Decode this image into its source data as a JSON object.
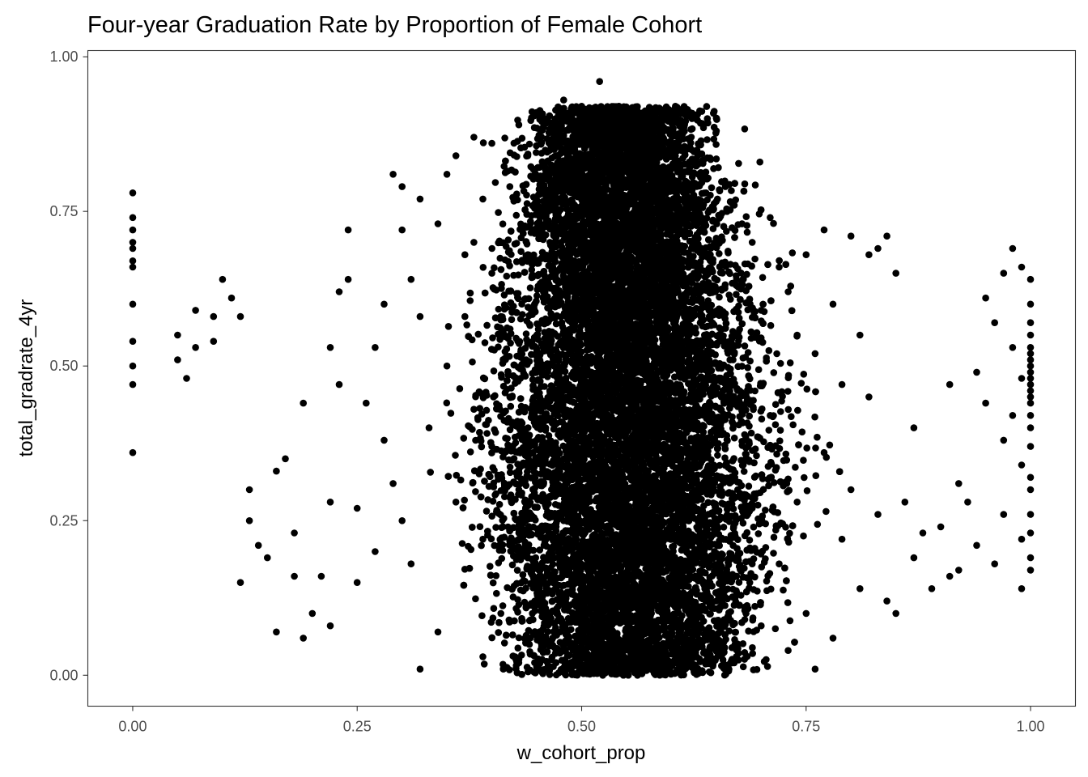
{
  "chart_data": {
    "type": "scatter",
    "title": "Four-year Graduation Rate by Proportion of Female Cohort",
    "xlabel": "w_cohort_prop",
    "ylabel": "total_gradrate_4yr",
    "xlim": [
      -0.05,
      1.05
    ],
    "ylim": [
      -0.05,
      1.01
    ],
    "x_ticks": [
      0,
      0.25,
      0.5,
      0.75,
      1
    ],
    "x_tick_labels": [
      "0.00",
      "0.25",
      "0.50",
      "0.75",
      "1.00"
    ],
    "y_ticks": [
      0,
      0.25,
      0.5,
      0.75,
      1
    ],
    "y_tick_labels": [
      "0.00",
      "0.25",
      "0.50",
      "0.75",
      "1.00"
    ],
    "grid": false,
    "legend": "none",
    "point_color": "#000000",
    "points": [
      [
        0.0,
        0.78
      ],
      [
        0.0,
        0.74
      ],
      [
        0.0,
        0.72
      ],
      [
        0.0,
        0.7
      ],
      [
        0.0,
        0.69
      ],
      [
        0.0,
        0.67
      ],
      [
        0.0,
        0.66
      ],
      [
        0.0,
        0.6
      ],
      [
        0.0,
        0.54
      ],
      [
        0.0,
        0.5
      ],
      [
        0.0,
        0.47
      ],
      [
        0.0,
        0.36
      ],
      [
        0.05,
        0.55
      ],
      [
        0.05,
        0.51
      ],
      [
        0.06,
        0.48
      ],
      [
        0.07,
        0.59
      ],
      [
        0.07,
        0.53
      ],
      [
        0.09,
        0.58
      ],
      [
        0.09,
        0.54
      ],
      [
        0.1,
        0.64
      ],
      [
        0.11,
        0.61
      ],
      [
        0.12,
        0.58
      ],
      [
        0.12,
        0.15
      ],
      [
        0.13,
        0.3
      ],
      [
        0.13,
        0.25
      ],
      [
        0.14,
        0.21
      ],
      [
        0.15,
        0.19
      ],
      [
        0.16,
        0.33
      ],
      [
        0.16,
        0.07
      ],
      [
        0.17,
        0.35
      ],
      [
        0.18,
        0.23
      ],
      [
        0.18,
        0.16
      ],
      [
        0.19,
        0.44
      ],
      [
        0.19,
        0.06
      ],
      [
        0.2,
        0.1
      ],
      [
        0.21,
        0.16
      ],
      [
        0.22,
        0.53
      ],
      [
        0.22,
        0.28
      ],
      [
        0.22,
        0.08
      ],
      [
        0.23,
        0.62
      ],
      [
        0.23,
        0.47
      ],
      [
        0.24,
        0.72
      ],
      [
        0.24,
        0.64
      ],
      [
        0.25,
        0.27
      ],
      [
        0.25,
        0.15
      ],
      [
        0.26,
        0.44
      ],
      [
        0.27,
        0.53
      ],
      [
        0.27,
        0.2
      ],
      [
        0.28,
        0.6
      ],
      [
        0.28,
        0.38
      ],
      [
        0.29,
        0.81
      ],
      [
        0.29,
        0.31
      ],
      [
        0.3,
        0.79
      ],
      [
        0.3,
        0.72
      ],
      [
        0.3,
        0.25
      ],
      [
        0.31,
        0.64
      ],
      [
        0.31,
        0.18
      ],
      [
        0.32,
        0.77
      ],
      [
        0.32,
        0.58
      ],
      [
        0.32,
        0.01
      ],
      [
        0.33,
        0.4
      ],
      [
        0.34,
        0.73
      ],
      [
        0.34,
        0.07
      ],
      [
        0.35,
        0.81
      ],
      [
        0.35,
        0.5
      ],
      [
        0.36,
        0.84
      ],
      [
        0.36,
        0.28
      ],
      [
        0.37,
        0.68
      ],
      [
        0.37,
        0.58
      ],
      [
        0.38,
        0.87
      ],
      [
        0.38,
        0.7
      ],
      [
        0.38,
        0.43
      ],
      [
        0.39,
        0.77
      ],
      [
        0.39,
        0.22
      ],
      [
        0.39,
        0.03
      ],
      [
        0.4,
        0.86
      ],
      [
        0.4,
        0.65
      ],
      [
        0.4,
        0.37
      ],
      [
        0.41,
        0.58
      ],
      [
        0.41,
        0.1
      ],
      [
        0.42,
        0.79
      ],
      [
        0.42,
        0.45
      ],
      [
        0.43,
        0.89
      ],
      [
        0.43,
        0.3
      ],
      [
        0.43,
        0.02
      ],
      [
        0.44,
        0.84
      ],
      [
        0.44,
        0.68
      ],
      [
        0.45,
        0.55
      ],
      [
        0.45,
        0.12
      ],
      [
        0.45,
        0.91
      ],
      [
        0.46,
        0.78
      ],
      [
        0.46,
        0.4
      ],
      [
        0.47,
        0.88
      ],
      [
        0.47,
        0.62
      ],
      [
        0.48,
        0.93
      ],
      [
        0.48,
        0.25
      ],
      [
        0.49,
        0.72
      ],
      [
        0.49,
        0.05
      ],
      [
        0.5,
        0.92
      ],
      [
        0.5,
        0.58
      ],
      [
        0.51,
        0.86
      ],
      [
        0.51,
        0.33
      ],
      [
        0.52,
        0.96
      ],
      [
        0.52,
        0.7
      ],
      [
        0.53,
        0.9
      ],
      [
        0.53,
        0.15
      ],
      [
        0.54,
        0.82
      ],
      [
        0.54,
        0.48
      ],
      [
        0.55,
        0.91
      ],
      [
        0.55,
        0.62
      ],
      [
        0.56,
        0.87
      ],
      [
        0.56,
        0.02
      ],
      [
        0.57,
        0.78
      ],
      [
        0.57,
        0.38
      ],
      [
        0.58,
        0.88
      ],
      [
        0.58,
        0.55
      ],
      [
        0.59,
        0.8
      ],
      [
        0.59,
        0.2
      ],
      [
        0.6,
        0.86
      ],
      [
        0.6,
        0.44
      ],
      [
        0.61,
        0.75
      ],
      [
        0.61,
        0.09
      ],
      [
        0.62,
        0.83
      ],
      [
        0.62,
        0.52
      ],
      [
        0.63,
        0.81
      ],
      [
        0.63,
        0.3
      ],
      [
        0.64,
        0.9
      ],
      [
        0.64,
        0.6
      ],
      [
        0.65,
        0.88
      ],
      [
        0.65,
        0.12
      ],
      [
        0.66,
        0.79
      ],
      [
        0.66,
        0.45
      ],
      [
        0.67,
        0.76
      ],
      [
        0.67,
        0.02
      ],
      [
        0.68,
        0.64
      ],
      [
        0.68,
        0.34
      ],
      [
        0.69,
        0.7
      ],
      [
        0.7,
        0.59
      ],
      [
        0.7,
        0.08
      ],
      [
        0.71,
        0.74
      ],
      [
        0.71,
        0.42
      ],
      [
        0.72,
        0.66
      ],
      [
        0.72,
        0.18
      ],
      [
        0.73,
        0.62
      ],
      [
        0.73,
        0.04
      ],
      [
        0.74,
        0.55
      ],
      [
        0.74,
        0.28
      ],
      [
        0.75,
        0.68
      ],
      [
        0.75,
        0.1
      ],
      [
        0.76,
        0.52
      ],
      [
        0.76,
        0.01
      ],
      [
        0.77,
        0.72
      ],
      [
        0.77,
        0.36
      ],
      [
        0.78,
        0.6
      ],
      [
        0.78,
        0.06
      ],
      [
        0.79,
        0.47
      ],
      [
        0.79,
        0.22
      ],
      [
        0.8,
        0.71
      ],
      [
        0.8,
        0.3
      ],
      [
        0.81,
        0.55
      ],
      [
        0.81,
        0.14
      ],
      [
        0.82,
        0.68
      ],
      [
        0.82,
        0.45
      ],
      [
        0.83,
        0.69
      ],
      [
        0.83,
        0.26
      ],
      [
        0.84,
        0.71
      ],
      [
        0.84,
        0.12
      ],
      [
        0.85,
        0.65
      ],
      [
        0.85,
        0.1
      ],
      [
        0.86,
        0.28
      ],
      [
        0.87,
        0.19
      ],
      [
        0.87,
        0.4
      ],
      [
        0.88,
        0.23
      ],
      [
        0.89,
        0.14
      ],
      [
        0.9,
        0.24
      ],
      [
        0.91,
        0.47
      ],
      [
        0.91,
        0.16
      ],
      [
        0.92,
        0.31
      ],
      [
        0.92,
        0.17
      ],
      [
        0.93,
        0.28
      ],
      [
        0.94,
        0.49
      ],
      [
        0.94,
        0.21
      ],
      [
        0.95,
        0.61
      ],
      [
        0.95,
        0.44
      ],
      [
        0.96,
        0.57
      ],
      [
        0.96,
        0.18
      ],
      [
        0.97,
        0.65
      ],
      [
        0.97,
        0.38
      ],
      [
        0.97,
        0.26
      ],
      [
        0.98,
        0.69
      ],
      [
        0.98,
        0.53
      ],
      [
        0.98,
        0.42
      ],
      [
        0.99,
        0.66
      ],
      [
        0.99,
        0.48
      ],
      [
        0.99,
        0.34
      ],
      [
        0.99,
        0.14
      ],
      [
        0.99,
        0.22
      ],
      [
        1.0,
        0.64
      ],
      [
        1.0,
        0.6
      ],
      [
        1.0,
        0.57
      ],
      [
        1.0,
        0.55
      ],
      [
        1.0,
        0.53
      ],
      [
        1.0,
        0.52
      ],
      [
        1.0,
        0.51
      ],
      [
        1.0,
        0.5
      ],
      [
        1.0,
        0.49
      ],
      [
        1.0,
        0.48
      ],
      [
        1.0,
        0.47
      ],
      [
        1.0,
        0.46
      ],
      [
        1.0,
        0.45
      ],
      [
        1.0,
        0.44
      ],
      [
        1.0,
        0.42
      ],
      [
        1.0,
        0.4
      ],
      [
        1.0,
        0.37
      ],
      [
        1.0,
        0.32
      ],
      [
        1.0,
        0.3
      ],
      [
        1.0,
        0.26
      ],
      [
        1.0,
        0.23
      ],
      [
        1.0,
        0.19
      ],
      [
        1.0,
        0.17
      ]
    ],
    "dense_cloud": {
      "note_free_generation": true,
      "x_mean": 0.555,
      "x_sd": 0.075,
      "y_min": 0.0,
      "y_max": 0.92,
      "count": 14000
    }
  }
}
